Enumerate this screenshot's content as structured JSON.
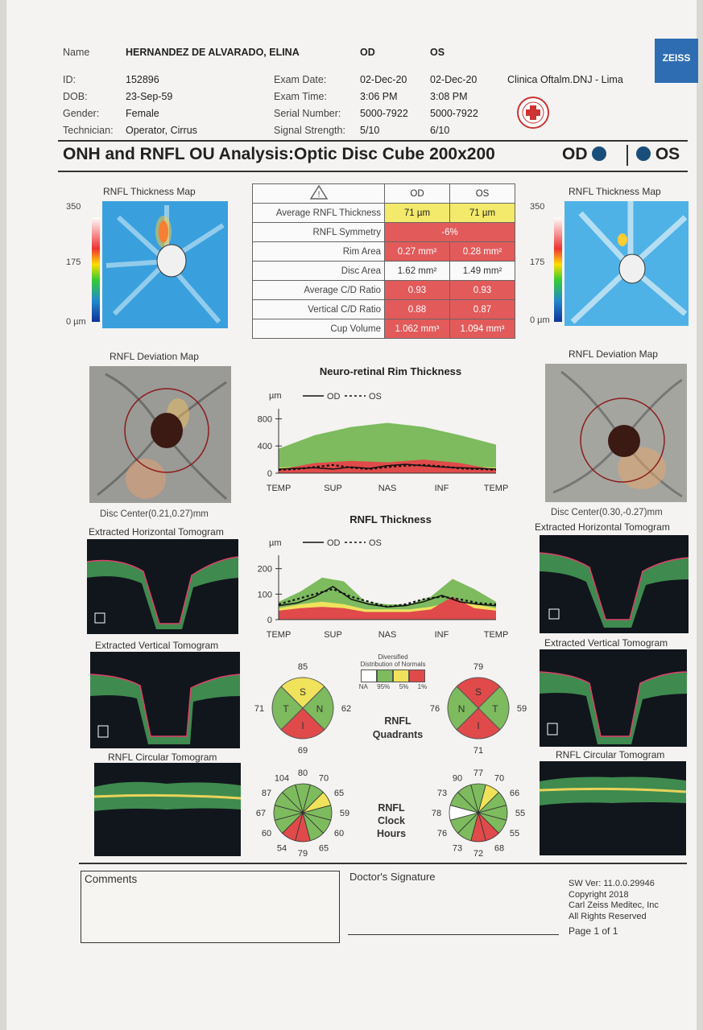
{
  "patient": {
    "name_label": "Name",
    "name": "HERNANDEZ DE ALVARADO, ELINA",
    "id_label": "ID:",
    "id": "152896",
    "dob_label": "DOB:",
    "dob": "23-Sep-59",
    "gender_label": "Gender:",
    "gender": "Female",
    "technician_label": "Technician:",
    "technician": "Operator, Cirrus"
  },
  "exam": {
    "od_label": "OD",
    "os_label": "OS",
    "date_label": "Exam Date:",
    "date_od": "02-Dec-20",
    "date_os": "02-Dec-20",
    "time_label": "Exam Time:",
    "time_od": "3:06 PM",
    "time_os": "3:08 PM",
    "serial_label": "Serial Number:",
    "serial_od": "5000-7922",
    "serial_os": "5000-7922",
    "signal_label": "Signal Strength:",
    "signal_od": "5/10",
    "signal_os": "6/10",
    "clinic": "Clinica Oftalm.DNJ - Lima"
  },
  "brand": "ZEISS",
  "report_title": "ONH and RNFL OU Analysis:Optic Disc Cube 200x200",
  "eye_od": "OD",
  "eye_os": "OS",
  "maps": {
    "thickness_title": "RNFL Thickness Map",
    "scale_max": "350",
    "scale_mid": "175",
    "scale_min": "0 µm",
    "deviation_title": "RNFL Deviation Map",
    "disc_center_od": "Disc Center(0.21,0.27)mm",
    "disc_center_os": "Disc Center(0.30,-0.27)mm",
    "h_tomo": "Extracted Horizontal Tomogram",
    "v_tomo": "Extracted Vertical Tomogram",
    "c_tomo": "RNFL Circular Tomogram"
  },
  "metrics_table": {
    "col_od": "OD",
    "col_os": "OS",
    "rows": [
      {
        "label": "Average RNFL Thickness",
        "od": "71 µm",
        "os": "71 µm"
      },
      {
        "label": "RNFL Symmetry",
        "both": "-6%"
      },
      {
        "label": "Rim Area",
        "od": "0.27 mm²",
        "os": "0.28 mm²"
      },
      {
        "label": "Disc Area",
        "od": "1.62 mm²",
        "os": "1.49 mm²"
      },
      {
        "label": "Average C/D Ratio",
        "od": "0.93",
        "os": "0.93"
      },
      {
        "label": "Vertical C/D Ratio",
        "od": "0.88",
        "os": "0.87"
      },
      {
        "label": "Cup Volume",
        "od": "1.062 mm³",
        "os": "1.094 mm³"
      }
    ]
  },
  "chart_data": [
    {
      "type": "line",
      "title": "Neuro-retinal Rim Thickness",
      "ylabel": "µm",
      "ylim": [
        0,
        900
      ],
      "yticks": [
        "800",
        "400",
        "0"
      ],
      "xticks": [
        "TEMP",
        "SUP",
        "NAS",
        "INF",
        "TEMP"
      ],
      "series": [
        {
          "name": "OD",
          "values": [
            60,
            70,
            80,
            60,
            90,
            70,
            110,
            130,
            110,
            90,
            80,
            70,
            60
          ]
        },
        {
          "name": "OS",
          "values": [
            50,
            60,
            90,
            120,
            80,
            60,
            90,
            110,
            120,
            100,
            70,
            60,
            50
          ]
        }
      ]
    },
    {
      "type": "line",
      "title": "RNFL Thickness",
      "ylabel": "µm",
      "ylim": [
        0,
        240
      ],
      "yticks": [
        "200",
        "100",
        "0"
      ],
      "xticks": [
        "TEMP",
        "SUP",
        "NAS",
        "INF",
        "TEMP"
      ],
      "series": [
        {
          "name": "OD",
          "values": [
            55,
            65,
            90,
            130,
            80,
            60,
            50,
            55,
            70,
            95,
            70,
            60,
            55
          ]
        },
        {
          "name": "OS",
          "values": [
            60,
            80,
            100,
            120,
            90,
            70,
            50,
            60,
            80,
            90,
            80,
            65,
            60
          ]
        }
      ]
    }
  ],
  "legend": {
    "line1": "Diversified",
    "line2": "Distribution of Normals",
    "na": "NA",
    "p95": "95%",
    "p5": "5%",
    "p1": "1%"
  },
  "quadrants": {
    "title1": "RNFL",
    "title2": "Quadrants",
    "od": {
      "S": "85",
      "N": "62",
      "I": "69",
      "T": "71"
    },
    "os": {
      "S": "79",
      "N": "76",
      "I": "71",
      "T": "59"
    }
  },
  "clock": {
    "title1": "RNFL",
    "title2": "Clock",
    "title3": "Hours",
    "od": [
      "80",
      "70",
      "65",
      "59",
      "60",
      "65",
      "79",
      "54",
      "60",
      "67",
      "87",
      "104"
    ],
    "os": [
      "77",
      "70",
      "66",
      "55",
      "55",
      "68",
      "72",
      "73",
      "76",
      "78",
      "73",
      "90"
    ]
  },
  "footer": {
    "comments": "Comments",
    "signature": "Doctor's Signature",
    "sw1": "SW Ver: 11.0.0.29946",
    "sw2": "Copyright 2018",
    "sw3": "Carl Zeiss Meditec, Inc",
    "sw4": "All Rights Reserved",
    "page": "Page 1 of 1"
  },
  "colors": {
    "green": "#7dbb5e",
    "yellow": "#f0e25a",
    "red": "#e04a4a",
    "od_line": "#111111",
    "accent": "#1a4e7a"
  }
}
